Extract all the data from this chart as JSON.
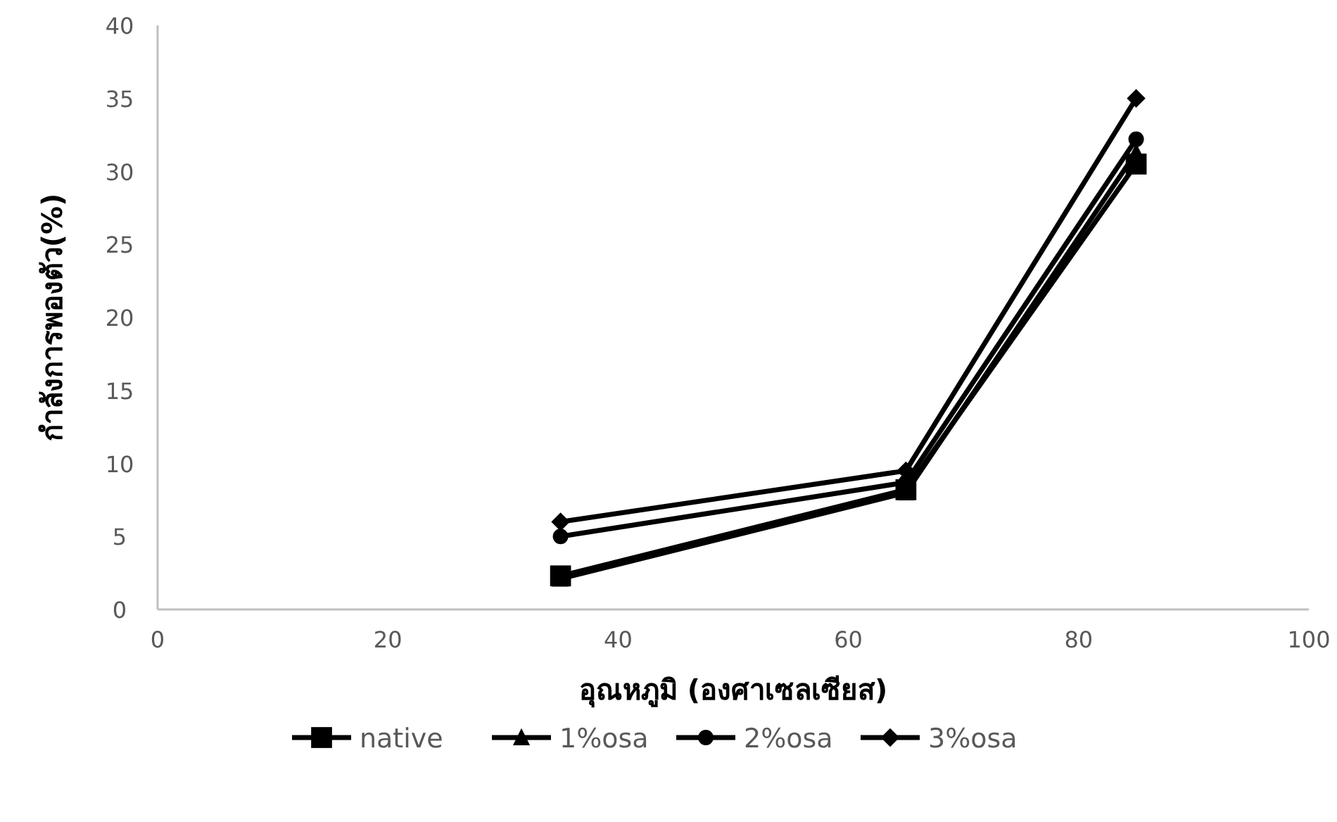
{
  "chart_data": {
    "type": "line",
    "xlabel": "อุณหภูมิ (องศาเซลเซียส)",
    "ylabel": "กำลังการพองตัว(%)",
    "x": [
      35,
      65,
      85
    ],
    "series": [
      {
        "name": "native",
        "color": "#000000",
        "marker": "square",
        "values": [
          2.3,
          8.2,
          30.5
        ]
      },
      {
        "name": "1%osa",
        "color": "#000000",
        "marker": "triangle",
        "values": [
          2.1,
          8.0,
          31.3
        ]
      },
      {
        "name": "2%osa",
        "color": "#000000",
        "marker": "circle",
        "values": [
          5.0,
          8.7,
          32.2
        ]
      },
      {
        "name": "3%osa",
        "color": "#000000",
        "marker": "diamond",
        "values": [
          6.0,
          9.5,
          35.0
        ]
      }
    ],
    "xlim": [
      0,
      100
    ],
    "xticks": [
      0,
      20,
      40,
      60,
      80,
      100
    ],
    "ylim": [
      0,
      40
    ],
    "yticks": [
      0,
      5,
      10,
      15,
      20,
      25,
      30,
      35,
      40
    ],
    "grid": false,
    "legend": "bottom",
    "line_style": "solid"
  }
}
